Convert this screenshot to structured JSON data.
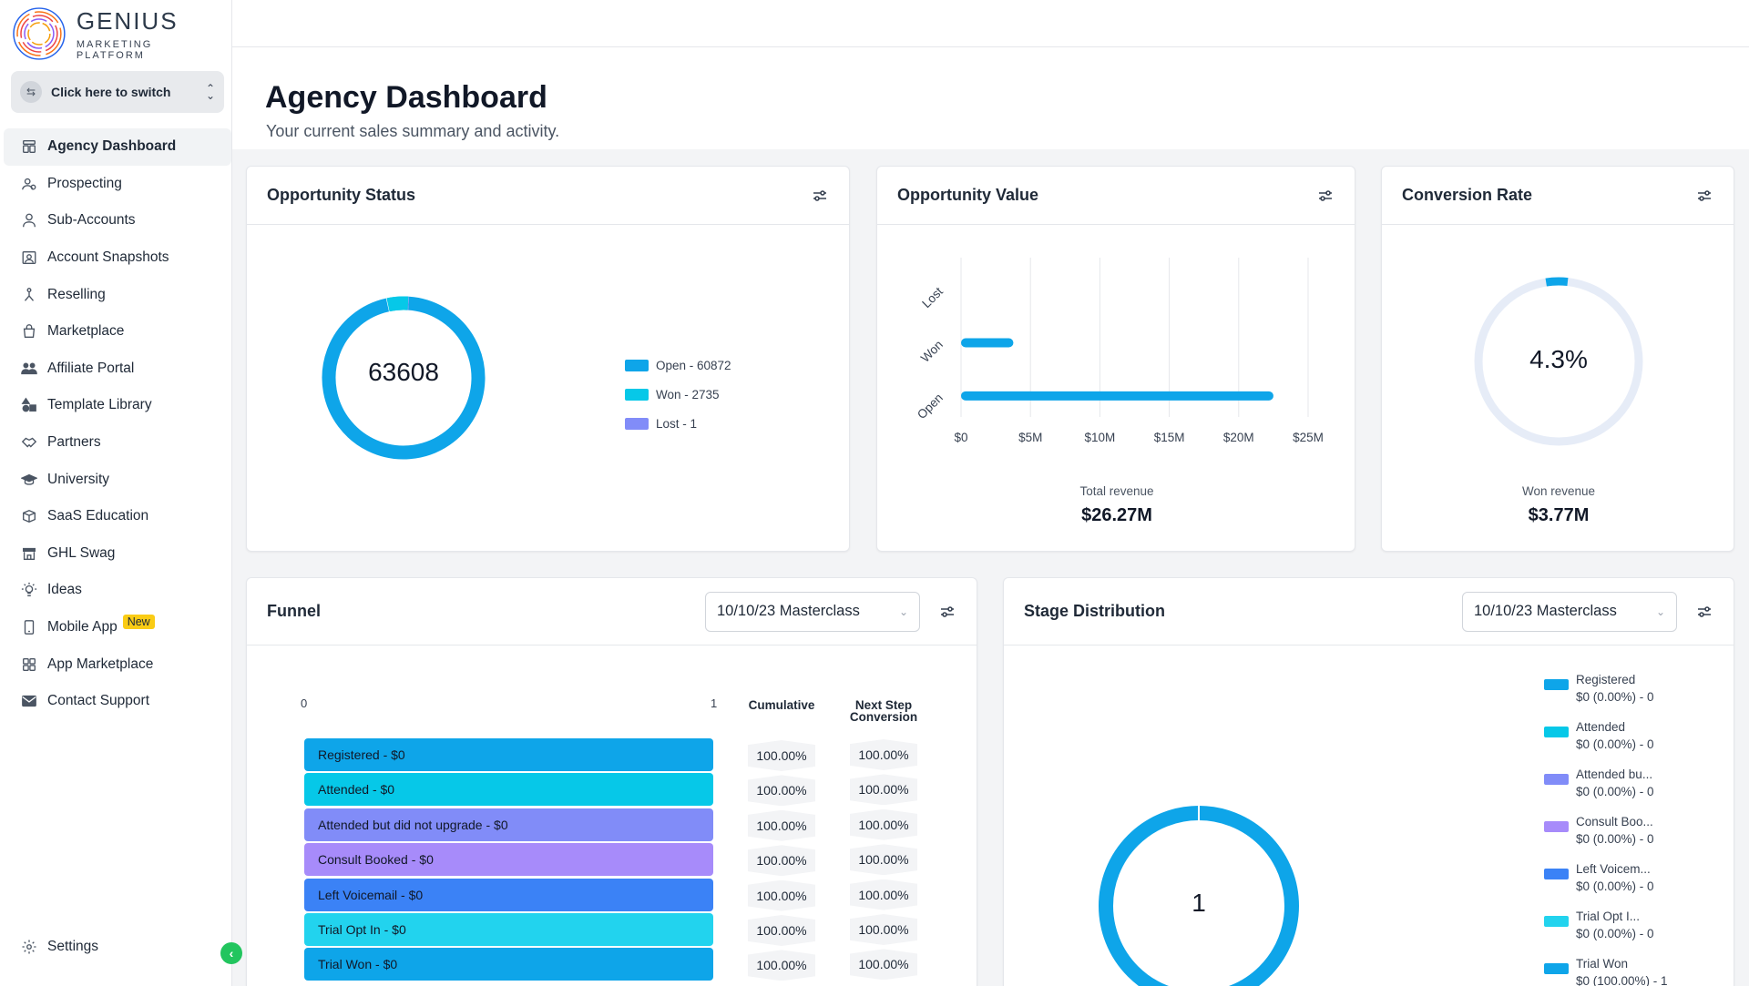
{
  "brand": {
    "title": "GENIUS",
    "subtitle": "MARKETING PLATFORM"
  },
  "switcher": {
    "label": "Click here to switch"
  },
  "nav": [
    {
      "label": "Agency Dashboard",
      "icon": "dashboard-icon",
      "active": true
    },
    {
      "label": "Prospecting",
      "icon": "prospecting-icon"
    },
    {
      "label": "Sub-Accounts",
      "icon": "user-icon"
    },
    {
      "label": "Account Snapshots",
      "icon": "snapshot-icon"
    },
    {
      "label": "Reselling",
      "icon": "reselling-icon"
    },
    {
      "label": "Marketplace",
      "icon": "shopping-bag-icon"
    },
    {
      "label": "Affiliate Portal",
      "icon": "users-icon"
    },
    {
      "label": "Template Library",
      "icon": "shapes-icon"
    },
    {
      "label": "Partners",
      "icon": "handshake-icon"
    },
    {
      "label": "University",
      "icon": "graduation-cap-icon"
    },
    {
      "label": "SaaS Education",
      "icon": "box-icon"
    },
    {
      "label": "GHL Swag",
      "icon": "store-icon"
    },
    {
      "label": "Ideas",
      "icon": "lightbulb-icon"
    },
    {
      "label": "Mobile App",
      "icon": "mobile-icon",
      "badge": "New"
    },
    {
      "label": "App Marketplace",
      "icon": "grid-icon"
    },
    {
      "label": "Contact Support",
      "icon": "envelope-icon"
    }
  ],
  "settings": {
    "label": "Settings"
  },
  "page": {
    "title": "Agency Dashboard",
    "subtitle": "Your current sales summary and activity."
  },
  "opportunity_status": {
    "title": "Opportunity Status",
    "total": "63608",
    "legend": [
      {
        "label": "Open - 60872",
        "color": "#0ea5e9"
      },
      {
        "label": "Won - 2735",
        "color": "#06c8e8"
      },
      {
        "label": "Lost - 1",
        "color": "#818cf8"
      }
    ]
  },
  "opportunity_value": {
    "title": "Opportunity Value",
    "total_label": "Total revenue",
    "total_value": "$26.27M"
  },
  "conversion_rate": {
    "title": "Conversion Rate",
    "rate": "4.3%",
    "won_label": "Won revenue",
    "won_value": "$3.77M"
  },
  "funnel": {
    "title": "Funnel",
    "select": "10/10/23 Masterclass",
    "axis_min": "0",
    "axis_max": "1",
    "col_cumulative": "Cumulative",
    "col_next_line1": "Next Step",
    "col_next_line2": "Conversion",
    "rows": [
      {
        "label": "Registered - $0",
        "color": "#0ea5e9",
        "cumulative": "100.00%",
        "next": "100.00%"
      },
      {
        "label": "Attended - $0",
        "color": "#06c8e8",
        "cumulative": "100.00%",
        "next": "100.00%"
      },
      {
        "label": "Attended but did not upgrade - $0",
        "color": "#818cf8",
        "cumulative": "100.00%",
        "next": "100.00%"
      },
      {
        "label": "Consult Booked - $0",
        "color": "#a78bfa",
        "cumulative": "100.00%",
        "next": "100.00%"
      },
      {
        "label": "Left Voicemail - $0",
        "color": "#3b82f6",
        "cumulative": "100.00%",
        "next": "100.00%"
      },
      {
        "label": "Trial Opt In - $0",
        "color": "#22d3ee",
        "cumulative": "100.00%",
        "next": "100.00%"
      },
      {
        "label": "Trial Won - $0",
        "color": "#0ea5e9",
        "cumulative": "100.00%",
        "next": "100.00%"
      }
    ]
  },
  "stage_distribution": {
    "title": "Stage Distribution",
    "select": "10/10/23 Masterclass",
    "total": "1",
    "legend": [
      {
        "name": "Registered",
        "value": "$0 (0.00%) - 0",
        "color": "#0ea5e9"
      },
      {
        "name": "Attended",
        "value": "$0 (0.00%) - 0",
        "color": "#06c8e8"
      },
      {
        "name": "Attended bu...",
        "value": "$0 (0.00%) - 0",
        "color": "#818cf8"
      },
      {
        "name": "Consult Boo...",
        "value": "$0 (0.00%) - 0",
        "color": "#a78bfa"
      },
      {
        "name": "Left Voicem...",
        "value": "$0 (0.00%) - 0",
        "color": "#3b82f6"
      },
      {
        "name": "Trial Opt I...",
        "value": "$0 (0.00%) - 0",
        "color": "#22d3ee"
      },
      {
        "name": "Trial Won",
        "value": "$0 (100.00%) - 1",
        "color": "#0ea5e9"
      }
    ]
  },
  "chart_data": [
    {
      "type": "pie",
      "title": "Opportunity Status",
      "categories": [
        "Open",
        "Won",
        "Lost"
      ],
      "values": [
        60872,
        2735,
        1
      ],
      "colors": [
        "#0ea5e9",
        "#06c8e8",
        "#818cf8"
      ]
    },
    {
      "type": "bar",
      "title": "Opportunity Value",
      "orientation": "horizontal",
      "categories": [
        "Lost",
        "Won",
        "Open"
      ],
      "values": [
        0,
        3.77,
        22.5
      ],
      "xlabel": "",
      "ylabel": "",
      "xlim": [
        0,
        25
      ],
      "x_ticks": [
        "$0",
        "$5M",
        "$10M",
        "$15M",
        "$20M",
        "$25M"
      ],
      "grid": true,
      "color": "#0ea5e9"
    },
    {
      "type": "pie",
      "title": "Conversion Rate",
      "categories": [
        "Won",
        "Remaining"
      ],
      "values": [
        4.3,
        95.7
      ],
      "colors": [
        "#0ea5e9",
        "#e5e7eb"
      ]
    },
    {
      "type": "pie",
      "title": "Stage Distribution",
      "categories": [
        "Registered",
        "Attended",
        "Attended bu...",
        "Consult Boo...",
        "Left Voicem...",
        "Trial Opt I...",
        "Trial Won"
      ],
      "values": [
        0,
        0,
        0,
        0,
        0,
        0,
        1
      ],
      "colors": [
        "#0ea5e9",
        "#06c8e8",
        "#818cf8",
        "#a78bfa",
        "#3b82f6",
        "#22d3ee",
        "#0ea5e9"
      ]
    }
  ]
}
